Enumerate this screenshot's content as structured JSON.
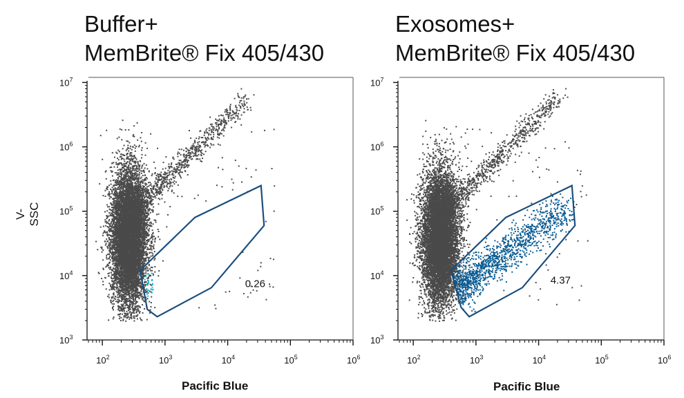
{
  "chart_data": [
    {
      "type": "scatter",
      "title": "Buffer+\nMemBrite® Fix 405/430",
      "title_lines": [
        "Buffer+",
        "MemBrite® Fix 405/430"
      ],
      "xlabel": "Pacific Blue",
      "ylabel": "V-SSC",
      "xscale": "log",
      "yscale": "log",
      "xlim": [
        60,
        1000000
      ],
      "ylim": [
        1000,
        12000000
      ],
      "x_ticks": [
        "10^2",
        "10^3",
        "10^4",
        "10^5",
        "10^6"
      ],
      "y_ticks": [
        "10^3",
        "10^4",
        "10^5",
        "10^6",
        "10^7"
      ],
      "gate_vertices": [
        [
          400,
          12000
        ],
        [
          520,
          3000
        ],
        [
          750,
          2300
        ],
        [
          5500,
          6500
        ],
        [
          38000,
          60000
        ],
        [
          34000,
          250000
        ],
        [
          3000,
          80000
        ]
      ],
      "gate_percentage": "0.26",
      "gate_label_position": [
        18000,
        7500
      ],
      "gated_color": "#12b5cf",
      "population_color": "#4a4a4a",
      "gate_color": "#1a4e7e"
    },
    {
      "type": "scatter",
      "title": "Exosomes+\nMemBrite® Fix 405/430",
      "title_lines": [
        "Exosomes+",
        "MemBrite® Fix 405/430"
      ],
      "xlabel": "Pacific Blue",
      "ylabel": "",
      "xscale": "log",
      "yscale": "log",
      "xlim": [
        60,
        1000000
      ],
      "ylim": [
        1000,
        12000000
      ],
      "x_ticks": [
        "10^2",
        "10^3",
        "10^4",
        "10^5",
        "10^6"
      ],
      "y_ticks": [
        "10^3",
        "10^4",
        "10^5",
        "10^6",
        "10^7"
      ],
      "gate_vertices": [
        [
          400,
          12000
        ],
        [
          580,
          3200
        ],
        [
          780,
          2300
        ],
        [
          5500,
          6500
        ],
        [
          38000,
          60000
        ],
        [
          34000,
          250000
        ],
        [
          3000,
          80000
        ]
      ],
      "gate_percentage": "4.37",
      "gate_label_position": [
        18000,
        8500
      ],
      "gated_color": "#0b5c93",
      "population_color": "#4a4a4a",
      "gate_color": "#1a4e7e"
    }
  ]
}
